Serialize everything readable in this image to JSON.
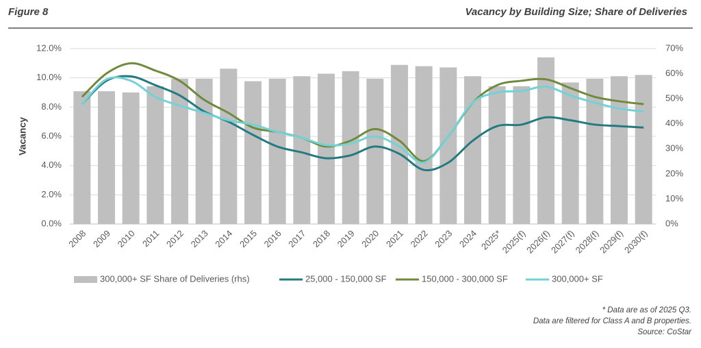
{
  "header": {
    "figure": "Figure 8",
    "title": "Vacancy by Building Size; Share of Deliveries"
  },
  "chart_data": {
    "type": "combo",
    "y_label": "Vacancy",
    "categories": [
      "2008",
      "2009",
      "2010",
      "2011",
      "2012",
      "2013",
      "2014",
      "2015",
      "2016",
      "2017",
      "2018",
      "2019",
      "2020",
      "2021",
      "2022",
      "2023",
      "2024",
      "2025*",
      "2025(f)",
      "2026(f)",
      "2027(f)",
      "2028(f)",
      "2029(f)",
      "2030(f)"
    ],
    "series": [
      {
        "name": "300,000+ SF Share of Deliveries (rhs)",
        "type": "bar",
        "axis": "y2",
        "color": "#bfbfbf",
        "values": [
          53,
          53,
          52.5,
          55,
          58,
          58,
          62,
          57,
          58,
          59,
          60,
          61,
          58,
          63.5,
          63,
          62.5,
          59,
          55,
          55,
          66.5,
          56.5,
          58,
          59,
          59.5
        ]
      },
      {
        "name": "25,000 - 150,000 SF",
        "type": "line",
        "color": "#237a80",
        "values": [
          8.2,
          9.8,
          10.1,
          9.5,
          8.8,
          7.7,
          7.0,
          6.1,
          5.3,
          4.9,
          4.5,
          4.7,
          5.3,
          4.8,
          3.7,
          4.2,
          5.7,
          6.7,
          6.8,
          7.3,
          7.1,
          6.8,
          6.7,
          6.6
        ]
      },
      {
        "name": "150,000 - 300,000 SF",
        "type": "line",
        "color": "#6f8a3c",
        "values": [
          8.7,
          10.3,
          11.0,
          10.5,
          9.8,
          8.5,
          7.6,
          6.6,
          6.3,
          5.9,
          5.3,
          5.7,
          6.5,
          5.7,
          4.3,
          6.0,
          8.3,
          9.5,
          9.8,
          9.9,
          9.3,
          8.7,
          8.4,
          8.2
        ]
      },
      {
        "name": "300,000+ SF",
        "type": "line",
        "color": "#73d2d6",
        "values": [
          8.2,
          9.9,
          9.8,
          8.7,
          8.1,
          7.6,
          7.1,
          6.8,
          6.3,
          5.9,
          5.4,
          5.5,
          6.0,
          5.3,
          4.2,
          6.0,
          8.3,
          9.0,
          9.1,
          9.4,
          8.8,
          8.3,
          7.9,
          7.7
        ]
      }
    ],
    "ylim": [
      0,
      12
    ],
    "yticks": [
      {
        "value": 0,
        "label": "0.0%"
      },
      {
        "value": 2,
        "label": "2.0%"
      },
      {
        "value": 4,
        "label": "4.0%"
      },
      {
        "value": 6,
        "label": "6.0%"
      },
      {
        "value": 8,
        "label": "8.0%"
      },
      {
        "value": 10,
        "label": "10.0%"
      },
      {
        "value": 12,
        "label": "12.0%"
      }
    ],
    "y2lim": [
      0,
      70
    ],
    "y2ticks": [
      {
        "value": 0,
        "label": "0%"
      },
      {
        "value": 10,
        "label": "10%"
      },
      {
        "value": 20,
        "label": "20%"
      },
      {
        "value": 30,
        "label": "30%"
      },
      {
        "value": 40,
        "label": "40%"
      },
      {
        "value": 50,
        "label": "50%"
      },
      {
        "value": 60,
        "label": "60%"
      },
      {
        "value": 70,
        "label": "70%"
      }
    ],
    "grid": true
  },
  "notes": [
    "* Data are as of 2025 Q3.",
    "Data are filtered for Class A and B properties.",
    "Source: CoStar"
  ]
}
